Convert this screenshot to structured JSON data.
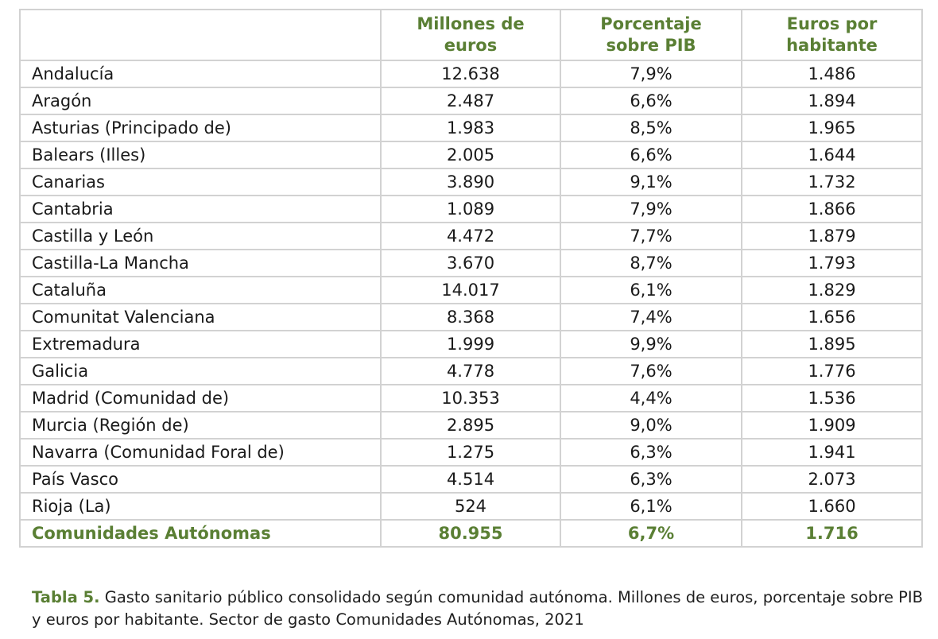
{
  "table": {
    "headers": [
      "",
      "Millones de\neuros",
      "Porcentaje\nsobre PIB",
      "Euros por\nhabitante"
    ],
    "rows": [
      [
        "Andalucía",
        "12.638",
        "7,9%",
        "1.486"
      ],
      [
        "Aragón",
        "2.487",
        "6,6%",
        "1.894"
      ],
      [
        "Asturias (Principado de)",
        "1.983",
        "8,5%",
        "1.965"
      ],
      [
        "Balears (Illes)",
        "2.005",
        "6,6%",
        "1.644"
      ],
      [
        "Canarias",
        "3.890",
        "9,1%",
        "1.732"
      ],
      [
        "Cantabria",
        "1.089",
        "7,9%",
        "1.866"
      ],
      [
        "Castilla y León",
        "4.472",
        "7,7%",
        "1.879"
      ],
      [
        "Castilla-La Mancha",
        "3.670",
        "8,7%",
        "1.793"
      ],
      [
        "Cataluña",
        "14.017",
        "6,1%",
        "1.829"
      ],
      [
        "Comunitat Valenciana",
        "8.368",
        "7,4%",
        "1.656"
      ],
      [
        "Extremadura",
        "1.999",
        "9,9%",
        "1.895"
      ],
      [
        "Galicia",
        "4.778",
        "7,6%",
        "1.776"
      ],
      [
        "Madrid (Comunidad de)",
        "10.353",
        "4,4%",
        "1.536"
      ],
      [
        "Murcia (Región de)",
        "2.895",
        "9,0%",
        "1.909"
      ],
      [
        "Navarra (Comunidad Foral de)",
        "1.275",
        "6,3%",
        "1.941"
      ],
      [
        "País Vasco",
        "4.514",
        "6,3%",
        "2.073"
      ],
      [
        "Rioja (La)",
        "524",
        "6,1%",
        "1.660"
      ]
    ],
    "total": [
      "Comunidades Autónomas",
      "80.955",
      "6,7%",
      "1.716"
    ]
  },
  "caption": {
    "label": "Tabla 5.",
    "text": " Gasto sanitario público consolidado según comunidad autónoma. Millones de euros, porcentaje sobre PIB y euros por habitante. Sector de gasto Comunidades Autónomas, 2021"
  },
  "colors": {
    "accent": "#5a7f34",
    "border": "#d2d2d2"
  }
}
